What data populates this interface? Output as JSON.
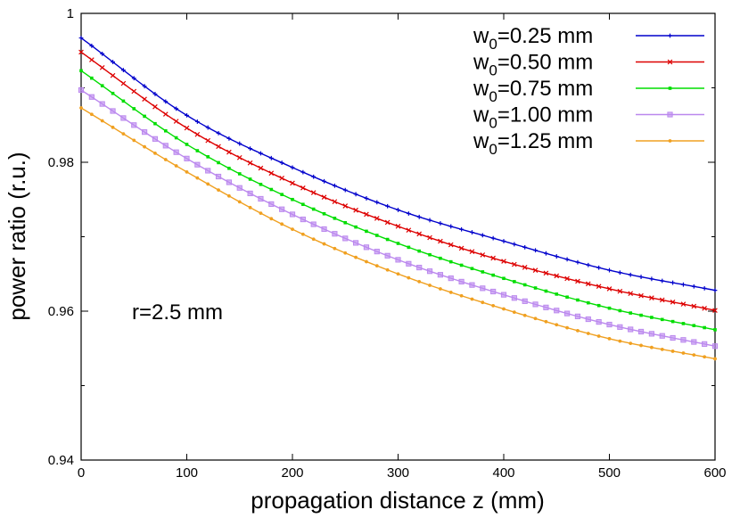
{
  "chart_data": {
    "type": "line",
    "title": "",
    "xlabel": "propagation distance z (mm)",
    "ylabel": "power ratio (r.u.)",
    "xlim": [
      0,
      600
    ],
    "ylim": [
      0.94,
      1.0
    ],
    "x_ticks": [
      0,
      100,
      200,
      300,
      400,
      500,
      600
    ],
    "y_ticks": [
      0.94,
      0.96,
      0.98,
      1.0
    ],
    "y_tick_labels": [
      "0.94",
      "0.96",
      "0.98",
      "1"
    ],
    "y_minor_ticks": [
      0.95,
      0.97,
      0.99
    ],
    "grid": false,
    "legend_position": "top-right",
    "annotation": "r=2.5 mm",
    "x": [
      0,
      100,
      200,
      300,
      400,
      500,
      600
    ],
    "series": [
      {
        "legend_prefix": "w",
        "legend_sub": "0",
        "legend_suffix": "=0.25 mm",
        "color": "#0000cc",
        "marker": "plus",
        "values": [
          0.9967,
          0.9863,
          0.9793,
          0.9736,
          0.9694,
          0.9655,
          0.9628
        ]
      },
      {
        "legend_prefix": "w",
        "legend_sub": "0",
        "legend_suffix": "=0.50 mm",
        "color": "#dd0000",
        "marker": "cross",
        "values": [
          0.9948,
          0.9846,
          0.9772,
          0.9714,
          0.9667,
          0.963,
          0.9601
        ]
      },
      {
        "legend_prefix": "w",
        "legend_sub": "0",
        "legend_suffix": "=0.75 mm",
        "color": "#00dd00",
        "marker": "square",
        "values": [
          0.9923,
          0.9824,
          0.975,
          0.9691,
          0.9644,
          0.9604,
          0.9575
        ]
      },
      {
        "legend_prefix": "w",
        "legend_sub": "0",
        "legend_suffix": "=1.00 mm",
        "color": "#bb88ee",
        "marker": "square-open",
        "values": [
          0.9897,
          0.9805,
          0.973,
          0.9669,
          0.9622,
          0.9582,
          0.9553
        ]
      },
      {
        "legend_prefix": "w",
        "legend_sub": "0",
        "legend_suffix": "=1.25 mm",
        "color": "#f0a020",
        "marker": "circle",
        "values": [
          0.9873,
          0.9787,
          0.971,
          0.965,
          0.9603,
          0.9563,
          0.9536
        ]
      }
    ]
  }
}
